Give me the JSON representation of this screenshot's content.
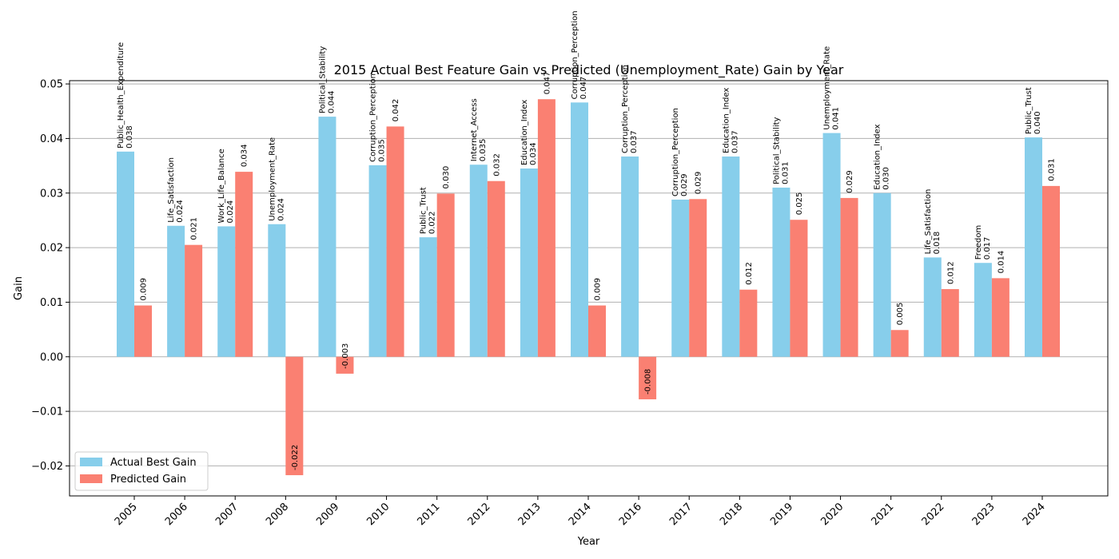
{
  "chart_data": {
    "type": "bar",
    "title": "2015 Actual Best Feature Gain vs Predicted (Unemployment_Rate) Gain by Year",
    "xlabel": "Year",
    "ylabel": "Gain",
    "ylim": [
      -0.0255,
      0.0506
    ],
    "yticks": [
      -0.02,
      -0.01,
      0.0,
      0.01,
      0.02,
      0.03,
      0.04,
      0.05
    ],
    "ytick_labels": [
      "−0.02",
      "−0.01",
      "0.00",
      "0.01",
      "0.02",
      "0.03",
      "0.04",
      "0.05"
    ],
    "grid": "y",
    "legend_position": "lower-left",
    "categories": [
      "2005",
      "2006",
      "2007",
      "2008",
      "2009",
      "2010",
      "2011",
      "2012",
      "2013",
      "2014",
      "2016",
      "2017",
      "2018",
      "2019",
      "2020",
      "2021",
      "2022",
      "2023",
      "2024"
    ],
    "series": [
      {
        "name": "Actual Best Gain",
        "color": "#87ceeb",
        "values": [
          0.0376,
          0.024,
          0.0239,
          0.0243,
          0.044,
          0.0351,
          0.0219,
          0.0352,
          0.0345,
          0.0466,
          0.0367,
          0.0288,
          0.0367,
          0.031,
          0.041,
          0.03,
          0.0182,
          0.0172,
          0.0402
        ],
        "value_labels": [
          "0.038",
          "0.024",
          "0.024",
          "0.024",
          "0.044",
          "0.035",
          "0.022",
          "0.035",
          "0.034",
          "0.047",
          "0.037",
          "0.029",
          "0.037",
          "0.031",
          "0.041",
          "0.030",
          "0.018",
          "0.017",
          "0.040"
        ],
        "feature_labels": [
          "Public_Health_Expenditure",
          "Life_Satisfaction",
          "Work_Life_Balance",
          "Unemployment_Rate",
          "Political_Stability",
          "Corruption_Perception",
          "Public_Trust",
          "Internet_Access",
          "Education_Index",
          "Corruption_Perception",
          "Corruption_Perception",
          "Corruption_Perception",
          "Education_Index",
          "Political_Stability",
          "Unemployment_Rate",
          "Education_Index",
          "Life_Satisfaction",
          "Freedom",
          "Public_Trust"
        ]
      },
      {
        "name": "Predicted Gain",
        "color": "#fa8072",
        "values": [
          0.0094,
          0.0205,
          0.0339,
          -0.0217,
          -0.0031,
          0.0422,
          0.0299,
          0.0322,
          0.0472,
          0.0094,
          -0.0078,
          0.0289,
          0.0123,
          0.0251,
          0.0291,
          0.0049,
          0.0124,
          0.0144,
          0.0313
        ],
        "value_labels": [
          "0.009",
          "0.021",
          "0.034",
          "-0.022",
          "-0.003",
          "0.042",
          "0.030",
          "0.032",
          "0.047",
          "0.009",
          "-0.008",
          "0.029",
          "0.012",
          "0.025",
          "0.029",
          "0.005",
          "0.012",
          "0.014",
          "0.031"
        ]
      }
    ]
  }
}
